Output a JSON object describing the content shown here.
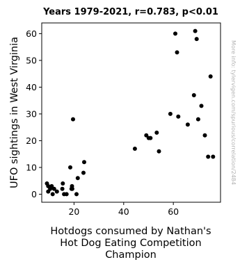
{
  "chart_data": {
    "type": "scatter",
    "title": "Years 1979-2021, r=0.783, p<0.01",
    "xlabel_lines": [
      "Hotdogs consumed by Nathan's",
      "Hot Dog Eating Competition",
      "Champion"
    ],
    "ylabel": "UFO sightings in West Virginia",
    "side_note": "More info: tylervigen.com/spurious/correlation/2484",
    "xlim": [
      7,
      79
    ],
    "ylim": [
      -3,
      64
    ],
    "xticks": [
      20,
      40,
      60
    ],
    "yticks": [
      0,
      10,
      20,
      30,
      40,
      50,
      60
    ],
    "point_color": "#000000",
    "grid": false,
    "points": [
      [
        9.1,
        4
      ],
      [
        9.6,
        3
      ],
      [
        9.6,
        1
      ],
      [
        10.4,
        2
      ],
      [
        11,
        3
      ],
      [
        11.4,
        0
      ],
      [
        12,
        2
      ],
      [
        13.1,
        1
      ],
      [
        15.5,
        4
      ],
      [
        15.3,
        2
      ],
      [
        16,
        0
      ],
      [
        17,
        0
      ],
      [
        18.5,
        10
      ],
      [
        19,
        2
      ],
      [
        19.2,
        3
      ],
      [
        19.3,
        2
      ],
      [
        19.6,
        28
      ],
      [
        21,
        0
      ],
      [
        21.5,
        6
      ],
      [
        23.8,
        8
      ],
      [
        24.1,
        12
      ],
      [
        44.5,
        17
      ],
      [
        49.1,
        22
      ],
      [
        50.1,
        21
      ],
      [
        50.8,
        21
      ],
      [
        53.3,
        23
      ],
      [
        54.2,
        16
      ],
      [
        58.8,
        30
      ],
      [
        60.8,
        60
      ],
      [
        61.5,
        53
      ],
      [
        62,
        29
      ],
      [
        65.8,
        26
      ],
      [
        68.8,
        61
      ],
      [
        68.3,
        37
      ],
      [
        69.4,
        58
      ],
      [
        70,
        28
      ],
      [
        71.3,
        33
      ],
      [
        72.7,
        22
      ],
      [
        74,
        14
      ],
      [
        75,
        44
      ],
      [
        76,
        14
      ]
    ]
  }
}
